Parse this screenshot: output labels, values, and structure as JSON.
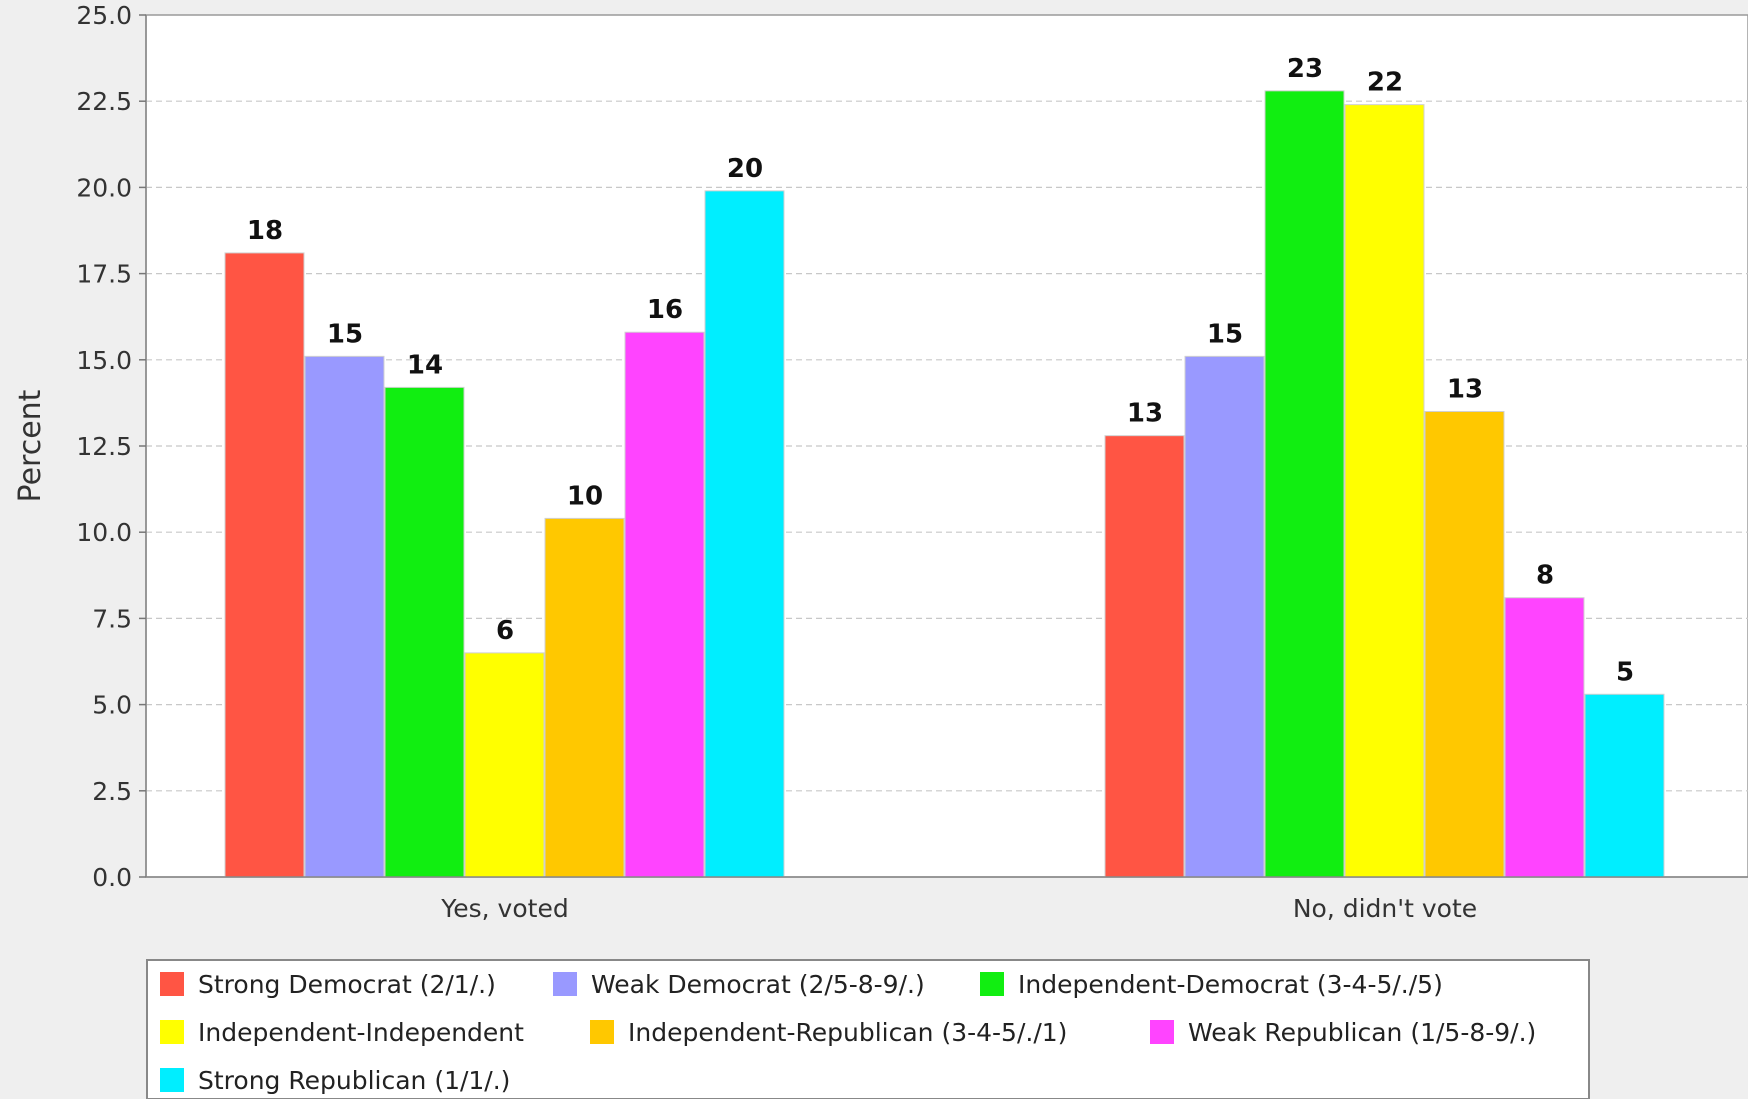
{
  "chart_data": {
    "type": "bar",
    "ylabel": "Percent",
    "xlabel": "",
    "ylim": [
      0,
      25
    ],
    "yticks": [
      "0.0",
      "2.5",
      "5.0",
      "7.5",
      "10.0",
      "12.5",
      "15.0",
      "17.5",
      "20.0",
      "22.5",
      "25.0"
    ],
    "categories": [
      "Yes, voted",
      "No, didn't vote"
    ],
    "grid": true,
    "legend_position": "bottom",
    "series": [
      {
        "name": "Strong Democrat (2/1/.)",
        "color": "#ff5544",
        "values": [
          18.1,
          12.8
        ],
        "labels": [
          "18",
          "13"
        ]
      },
      {
        "name": "Weak Democrat (2/5-8-9/.)",
        "color": "#9999ff",
        "values": [
          15.1,
          15.1
        ],
        "labels": [
          "15",
          "15"
        ]
      },
      {
        "name": "Independent-Democrat (3-4-5/./5)",
        "color": "#11ee11",
        "values": [
          14.2,
          22.8
        ],
        "labels": [
          "14",
          "23"
        ]
      },
      {
        "name": "Independent-Independent",
        "color": "#ffff00",
        "values": [
          6.5,
          22.4
        ],
        "labels": [
          "6",
          "22"
        ]
      },
      {
        "name": "Independent-Republican (3-4-5/./1)",
        "color": "#ffc800",
        "values": [
          10.4,
          13.5
        ],
        "labels": [
          "10",
          "13"
        ]
      },
      {
        "name": "Weak Republican (1/5-8-9/.)",
        "color": "#ff44ff",
        "values": [
          15.8,
          8.1
        ],
        "labels": [
          "16",
          "8"
        ]
      },
      {
        "name": "Strong Republican (1/1/.)",
        "color": "#00eeff",
        "values": [
          19.9,
          5.3
        ],
        "labels": [
          "20",
          "5"
        ]
      }
    ]
  }
}
